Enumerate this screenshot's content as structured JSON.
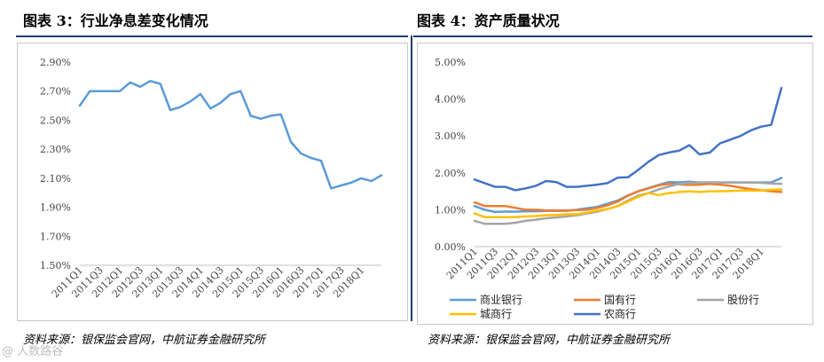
{
  "left_title": "图表 3：行业净息差变化情况",
  "right_title": "图表 4：资产质量状况",
  "left_source": "资料来源：银保监会官网，中航证券金融研究所",
  "right_source": "资料来源：银保监会官网，中航证券金融研究所",
  "watermark": "@ 人数路谷",
  "chart_data": [
    {
      "type": "line",
      "title": "图表 3：行业净息差变化情况",
      "y_ticks": [
        "1.50%",
        "1.70%",
        "1.90%",
        "2.10%",
        "2.30%",
        "2.50%",
        "2.70%",
        "2.90%"
      ],
      "ylim": [
        1.5,
        2.9
      ],
      "x_ticks": [
        "2011Q1",
        "2011Q3",
        "2012Q1",
        "2012Q3",
        "2013Q1",
        "2013Q3",
        "2014Q1",
        "2014Q3",
        "2015Q1",
        "2015Q3",
        "2016Q1",
        "2016Q3",
        "2017Q1",
        "2017Q3",
        "2018Q1"
      ],
      "grid": false,
      "legend": "none",
      "colors": {
        "series": "#5b9bd5"
      },
      "series": [
        {
          "values": [
            2.6,
            2.7,
            2.7,
            2.7,
            2.7,
            2.76,
            2.73,
            2.77,
            2.75,
            2.57,
            2.59,
            2.63,
            2.68,
            2.58,
            2.62,
            2.68,
            2.7,
            2.53,
            2.51,
            2.53,
            2.54,
            2.35,
            2.27,
            2.24,
            2.22,
            2.03,
            2.05,
            2.07,
            2.1,
            2.08,
            2.12
          ]
        }
      ]
    },
    {
      "type": "line",
      "title": "图表 4：资产质量状况",
      "y_ticks": [
        "0.00%",
        "1.00%",
        "2.00%",
        "3.00%",
        "4.00%",
        "5.00%"
      ],
      "ylim": [
        0,
        5
      ],
      "x_ticks": [
        "2011Q1",
        "2011Q3",
        "2012Q1",
        "2012Q3",
        "2013Q1",
        "2013Q3",
        "2014Q1",
        "2014Q3",
        "2015Q1",
        "2015Q3",
        "2016Q1",
        "2016Q3",
        "2017Q1",
        "2017Q3",
        "2018Q1"
      ],
      "grid": false,
      "legend": "bottom",
      "series": [
        {
          "name": "商业银行",
          "color": "#5b9bd5",
          "values": [
            1.1,
            1.0,
            0.94,
            0.95,
            0.95,
            0.96,
            0.96,
            0.97,
            0.97,
            0.97,
            1.0,
            1.04,
            1.08,
            1.16,
            1.25,
            1.39,
            1.5,
            1.59,
            1.67,
            1.75,
            1.74,
            1.76,
            1.74,
            1.74,
            1.74,
            1.74,
            1.74,
            1.74,
            1.74,
            1.74,
            1.86
          ]
        },
        {
          "name": "国有行",
          "color": "#ed7d31",
          "values": [
            1.2,
            1.1,
            1.1,
            1.1,
            1.05,
            1.0,
            1.0,
            0.98,
            0.98,
            0.98,
            0.99,
            1.0,
            1.05,
            1.12,
            1.22,
            1.38,
            1.5,
            1.58,
            1.66,
            1.7,
            1.69,
            1.67,
            1.68,
            1.7,
            1.68,
            1.65,
            1.6,
            1.56,
            1.53,
            1.5,
            1.48
          ]
        },
        {
          "name": "股份行",
          "color": "#a5a5a5",
          "values": [
            0.7,
            0.62,
            0.62,
            0.62,
            0.65,
            0.7,
            0.73,
            0.77,
            0.79,
            0.82,
            0.85,
            0.9,
            0.95,
            1.02,
            1.1,
            1.25,
            1.38,
            1.45,
            1.55,
            1.63,
            1.7,
            1.73,
            1.74,
            1.74,
            1.74,
            1.74,
            1.74,
            1.74,
            1.73,
            1.71,
            1.7
          ]
        },
        {
          "name": "城商行",
          "color": "#ffc000",
          "values": [
            0.9,
            0.8,
            0.8,
            0.8,
            0.8,
            0.82,
            0.83,
            0.85,
            0.86,
            0.88,
            0.88,
            0.92,
            0.98,
            1.02,
            1.1,
            1.22,
            1.35,
            1.45,
            1.4,
            1.45,
            1.48,
            1.5,
            1.48,
            1.5,
            1.5,
            1.51,
            1.52,
            1.52,
            1.52,
            1.54,
            1.55
          ]
        },
        {
          "name": "农商行",
          "color": "#4472c4",
          "values": [
            1.82,
            1.72,
            1.62,
            1.62,
            1.53,
            1.58,
            1.65,
            1.78,
            1.75,
            1.62,
            1.62,
            1.65,
            1.68,
            1.72,
            1.87,
            1.88,
            2.08,
            2.3,
            2.48,
            2.55,
            2.6,
            2.75,
            2.5,
            2.55,
            2.8,
            2.9,
            3.0,
            3.15,
            3.25,
            3.3,
            4.3
          ]
        }
      ]
    }
  ]
}
